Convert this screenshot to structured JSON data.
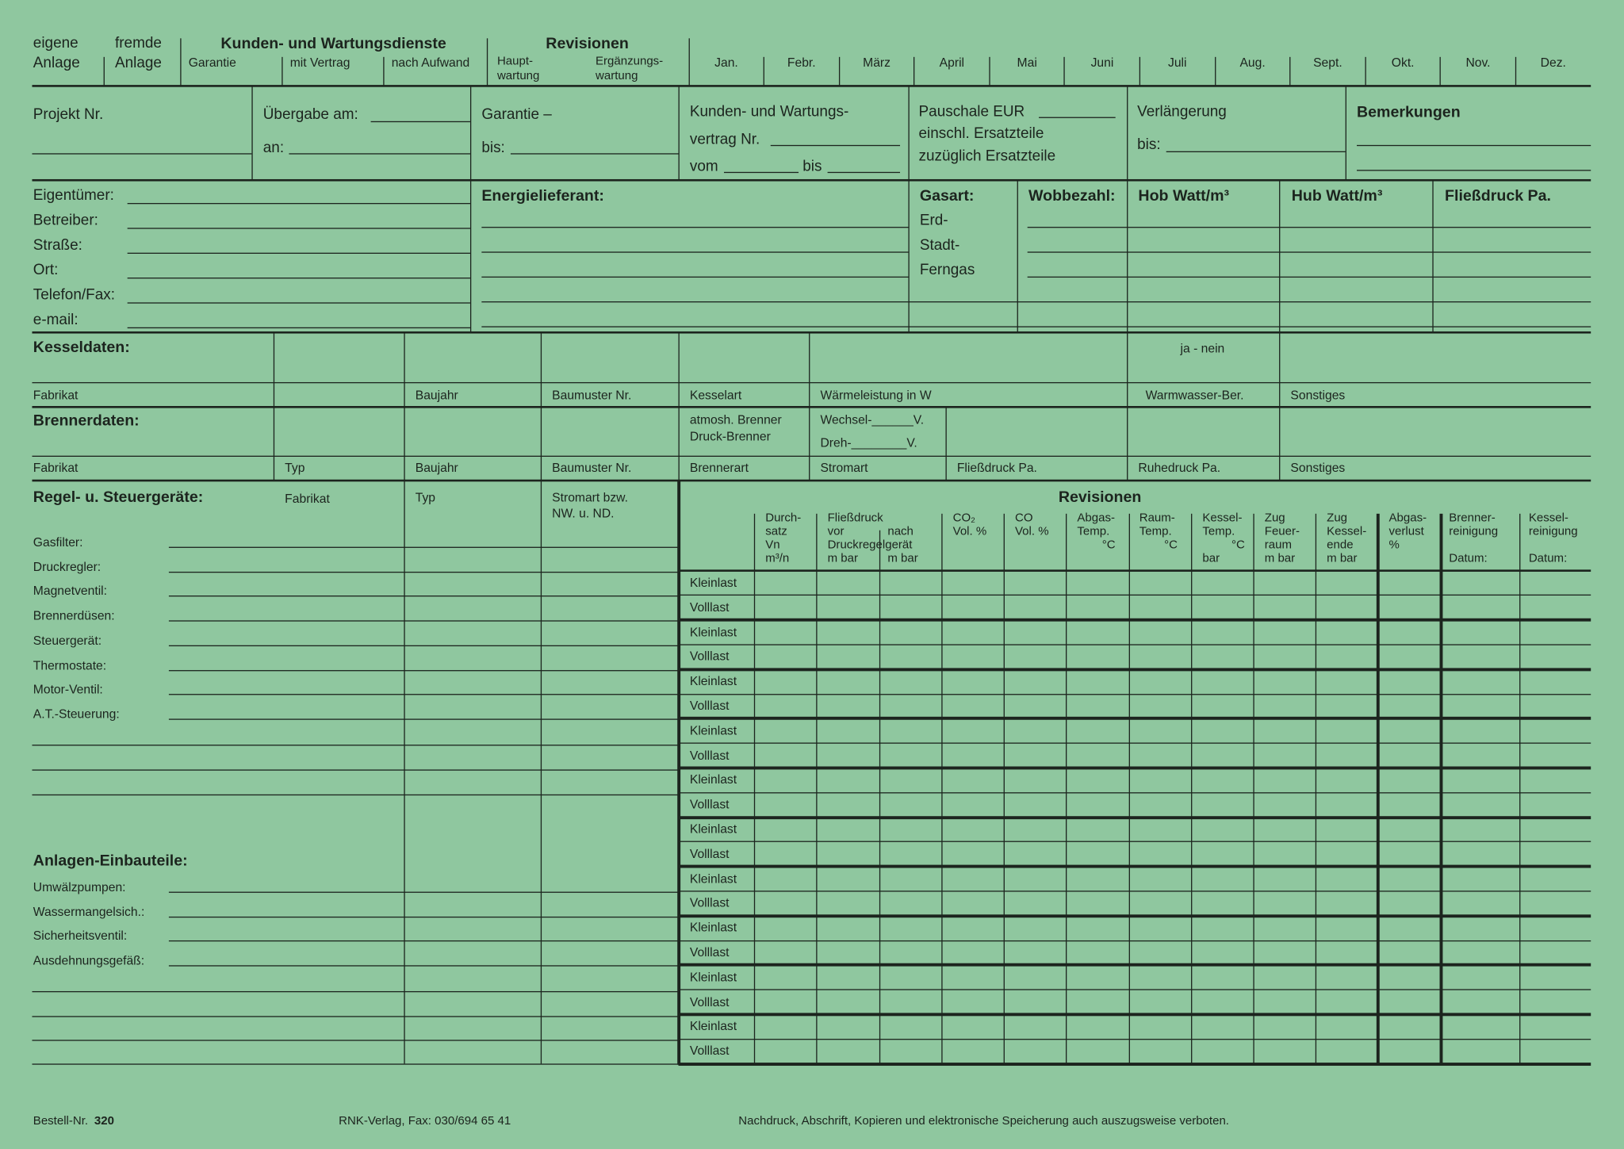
{
  "header": {
    "eigene": [
      "eigene",
      "Anlage"
    ],
    "fremde": [
      "fremde",
      "Anlage"
    ],
    "kunden_title": "Kunden- und Wartungsdienste",
    "kunden_sub": [
      "Garantie",
      "mit Vertrag",
      "nach Aufwand"
    ],
    "revisionen_title": "Revisionen",
    "haupt": [
      "Haupt-",
      "wartung"
    ],
    "ergaenzung": [
      "Ergänzungs-",
      "wartung"
    ],
    "months": [
      "Jan.",
      "Febr.",
      "März",
      "April",
      "Mai",
      "Juni",
      "Juli",
      "Aug.",
      "Sept.",
      "Okt.",
      "Nov.",
      "Dez."
    ]
  },
  "project": {
    "projekt_nr": "Projekt Nr.",
    "uebergabe_am": "Übergabe am:",
    "an": "an:",
    "garantie": "Garantie –",
    "garantie_bis": "bis:",
    "vertrag": [
      "Kunden- und Wartungs-",
      "vertrag Nr.",
      "vom",
      "bis"
    ],
    "pauschale": [
      "Pauschale EUR",
      "einschl. Ersatzteile",
      "zuzüglich Ersatzteile"
    ],
    "verlaengerung": "Verlängerung",
    "verlaengerung_bis": "bis:",
    "bemerkungen": "Bemerkungen"
  },
  "owner": {
    "fields": [
      "Eigentümer:",
      "Betreiber:",
      "Straße:",
      "Ort:",
      "Telefon/Fax:",
      "e-mail:"
    ],
    "energielieferant": "Energielieferant:",
    "gasart": "Gasart:",
    "gas_types": [
      "Erd-",
      "Stadt-",
      "Ferngas"
    ],
    "wobbezahl": "Wobbezahl:",
    "hob": "Hob Watt/m³",
    "hub": "Hub Watt/m³",
    "fliessdruck": "Fließdruck Pa."
  },
  "kessel": {
    "title": "Kesseldaten:",
    "ja_nein": "ja - nein",
    "labels": [
      "Fabrikat",
      "Baujahr",
      "Baumuster Nr.",
      "Kesselart",
      "Wärmeleistung in W",
      "Warmwasser-Ber.",
      "Sonstiges"
    ]
  },
  "brenner": {
    "title": "Brennerdaten:",
    "art_options": [
      "atmosh. Brenner",
      "Druck-Brenner"
    ],
    "strom_options": [
      "Wechsel-______V.",
      "Dreh-________V."
    ],
    "labels": [
      "Fabrikat",
      "Typ",
      "Baujahr",
      "Baumuster Nr.",
      "Brennerart",
      "Stromart",
      "Fließdruck Pa.",
      "Ruhedruck Pa.",
      "Sonstiges"
    ]
  },
  "regel": {
    "title": "Regel- u. Steuergeräte:",
    "col_fabrikat": "Fabrikat",
    "col_typ": "Typ",
    "col_stromart": [
      "Stromart bzw.",
      "NW. u. ND."
    ],
    "items": [
      "Gasfilter:",
      "Druckregler:",
      "Magnetventil:",
      "Brennerdüsen:",
      "Steuergerät:",
      "Thermostate:",
      "Motor-Ventil:",
      "A.T.-Steuerung:"
    ]
  },
  "einbauteile": {
    "title": "Anlagen-Einbauteile:",
    "items": [
      "Umwälzpumpen:",
      "Wassermangelsich.:",
      "Sicherheitsventil:",
      "Ausdehnungsgefäß:"
    ]
  },
  "revisionen": {
    "title": "Revisionen",
    "columns": [
      [
        "Durch-",
        "satz",
        "Vn",
        "m³/n"
      ],
      [
        "Fließdruck",
        "vor",
        "Druckregelgerät",
        "m bar"
      ],
      [
        "nach",
        "m bar"
      ],
      [
        "CO₂",
        "Vol. %"
      ],
      [
        "CO",
        "Vol. %"
      ],
      [
        "Abgas-",
        "Temp.",
        "°C"
      ],
      [
        "Raum-",
        "Temp.",
        "°C"
      ],
      [
        "Kessel-",
        "Temp.",
        "°C",
        "bar"
      ],
      [
        "Zug",
        "Feuer-",
        "raum",
        "m bar"
      ],
      [
        "Zug",
        "Kessel-",
        "ende",
        "m bar"
      ],
      [
        "Abgas-",
        "verlust",
        "%"
      ],
      [
        "Brenner-",
        "reinigung",
        "Datum:"
      ],
      [
        "Kessel-",
        "reinigung",
        "Datum:"
      ]
    ],
    "row_labels": [
      "Kleinlast",
      "Volllast"
    ]
  },
  "footer": {
    "bestell_label": "Bestell-Nr.",
    "bestell_nr": "320",
    "verlag": "RNK-Verlag, Fax: 030/694 65 41",
    "notice": "Nachdruck, Abschrift, Kopieren und elektronische Speicherung auch auszugsweise verboten."
  },
  "colors": {
    "paper": "#8fc79f",
    "ink": "#1c241e"
  }
}
